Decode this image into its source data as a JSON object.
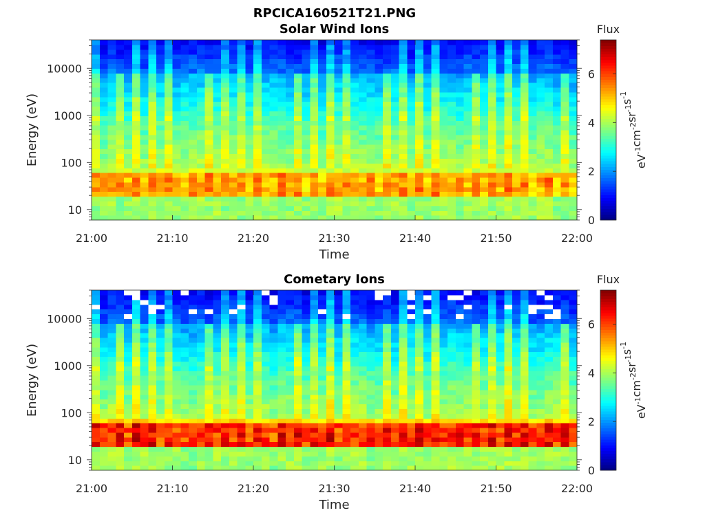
{
  "figure": {
    "title": "RPCICA160521T21.PNG"
  },
  "chart_data": [
    {
      "type": "heatmap",
      "title": "Solar Wind Ions",
      "xlabel": "Time",
      "ylabel": "Energy (eV)",
      "x_range": [
        "21:00",
        "22:00"
      ],
      "x_ticks": [
        "21:00",
        "21:10",
        "21:20",
        "21:30",
        "21:40",
        "21:50",
        "22:00"
      ],
      "y_scale": "log",
      "y_range": [
        6,
        40000
      ],
      "y_ticks": [
        10,
        100,
        1000,
        10000
      ],
      "y_tick_labels": [
        "10",
        "100",
        "1000",
        "10000"
      ],
      "colormap": "jet",
      "colorbar": {
        "label": "Flux",
        "range": [
          0,
          7.4
        ],
        "ticks": [
          0,
          2,
          4,
          6
        ],
        "unit": "eV-1cm-2sr-1s-1"
      }
    },
    {
      "type": "heatmap",
      "title": "Cometary Ions",
      "xlabel": "Time",
      "ylabel": "Energy (eV)",
      "x_range": [
        "21:00",
        "22:00"
      ],
      "x_ticks": [
        "21:00",
        "21:10",
        "21:20",
        "21:30",
        "21:40",
        "21:50",
        "22:00"
      ],
      "y_scale": "log",
      "y_range": [
        6,
        40000
      ],
      "y_ticks": [
        10,
        100,
        1000,
        10000
      ],
      "y_tick_labels": [
        "10",
        "100",
        "1000",
        "10000"
      ],
      "colormap": "jet",
      "colorbar": {
        "label": "Flux",
        "range": [
          0,
          7.4
        ],
        "ticks": [
          0,
          2,
          4,
          6
        ],
        "unit": "eV-1cm-2sr-1s-1"
      }
    }
  ]
}
